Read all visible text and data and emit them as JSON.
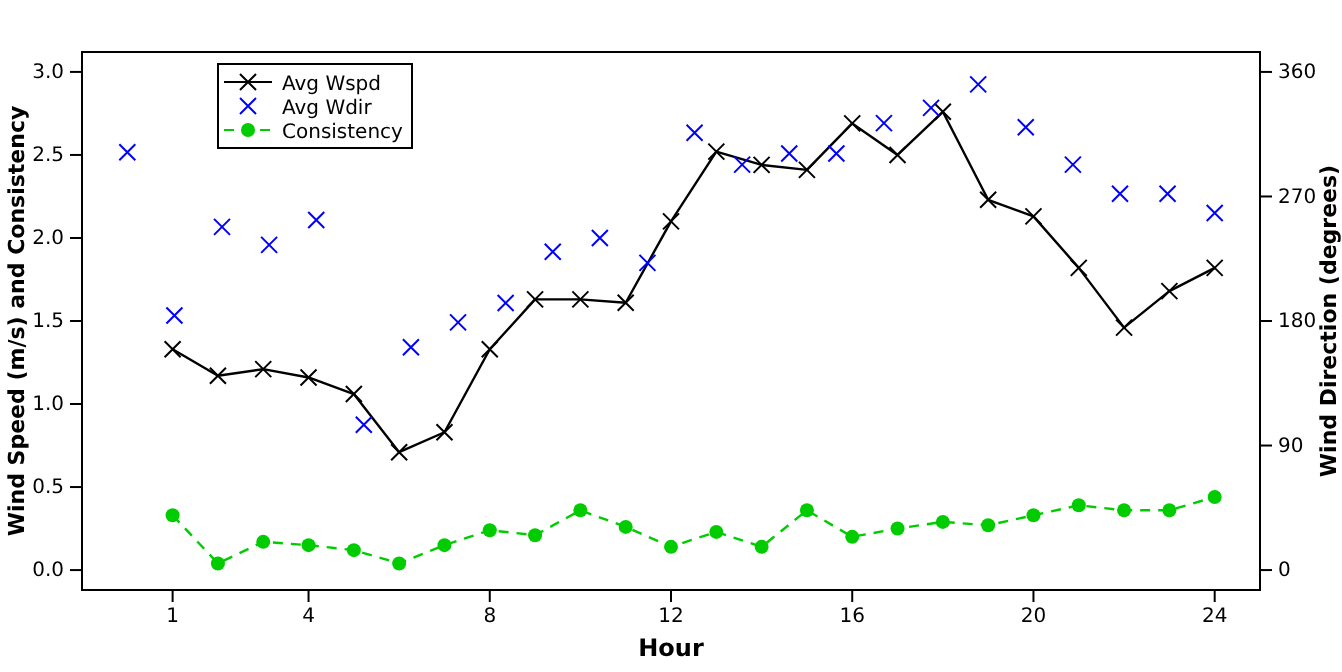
{
  "chart_data": {
    "type": "line",
    "xlabel": "Hour",
    "ylabel": "Wind Speed (m/s) and Consistency",
    "y2label": "Wind Direction (degrees)",
    "xlim": [
      -1,
      25
    ],
    "xticks": [
      1,
      4,
      8,
      12,
      16,
      20,
      24
    ],
    "ylim": [
      -0.12,
      3.12
    ],
    "yticks": [
      {
        "value": 0,
        "label": "0.0"
      },
      {
        "value": 0.5,
        "label": "0.5"
      },
      {
        "value": 1,
        "label": "1.0"
      },
      {
        "value": 1.5,
        "label": "1.5"
      },
      {
        "value": 2,
        "label": "2.0"
      },
      {
        "value": 2.5,
        "label": "2.5"
      },
      {
        "value": 3,
        "label": "3.0"
      }
    ],
    "y2lim": [
      -14.4,
      374.4
    ],
    "y2ticks": [
      0,
      90,
      180,
      270,
      360
    ],
    "grid": false,
    "legend": "top left",
    "series": [
      {
        "name": "Avg Wspd",
        "color": "#000000",
        "marker": "cross",
        "line_style": "solid",
        "x": [
          1,
          2,
          3,
          4,
          5,
          6,
          7,
          8,
          9,
          10,
          11,
          12,
          13,
          14,
          15,
          16,
          17,
          18,
          19,
          20,
          21,
          22,
          23,
          24
        ],
        "values": [
          1.33,
          1.17,
          1.21,
          1.16,
          1.06,
          0.71,
          0.83,
          1.33,
          1.63,
          1.63,
          1.61,
          2.1,
          2.52,
          2.44,
          2.41,
          2.69,
          2.5,
          2.76,
          2.23,
          2.13,
          1.82,
          1.46,
          1.68,
          1.82
        ]
      },
      {
        "name": "Avg Wdir",
        "type": "scatter",
        "axis": "y2",
        "color": "#0000ff",
        "marker": "cross",
        "x": [
          0,
          1.04,
          2.09,
          3.13,
          4.17,
          5.22,
          6.26,
          7.3,
          8.35,
          9.39,
          10.43,
          11.48,
          12.52,
          13.57,
          14.61,
          15.65,
          16.7,
          17.74,
          18.78,
          19.83,
          20.87,
          21.91,
          22.96,
          24
        ],
        "values": [
          302,
          184,
          248,
          235,
          253,
          105,
          161,
          179,
          193,
          230,
          240,
          222,
          316,
          293,
          301,
          301,
          323,
          334,
          351,
          320,
          293,
          272,
          272,
          258
        ]
      },
      {
        "name": "Consistency",
        "color": "#00cc00",
        "marker": "circle",
        "line_style": "dashed",
        "x": [
          1,
          2,
          3,
          4,
          5,
          6,
          7,
          8,
          9,
          10,
          11,
          12,
          13,
          14,
          15,
          16,
          17,
          18,
          19,
          20,
          21,
          22,
          23,
          24
        ],
        "values": [
          0.33,
          0.04,
          0.17,
          0.15,
          0.12,
          0.04,
          0.15,
          0.24,
          0.21,
          0.36,
          0.26,
          0.14,
          0.23,
          0.14,
          0.36,
          0.2,
          0.25,
          0.29,
          0.27,
          0.33,
          0.39,
          0.36,
          0.36,
          0.44
        ]
      }
    ]
  }
}
